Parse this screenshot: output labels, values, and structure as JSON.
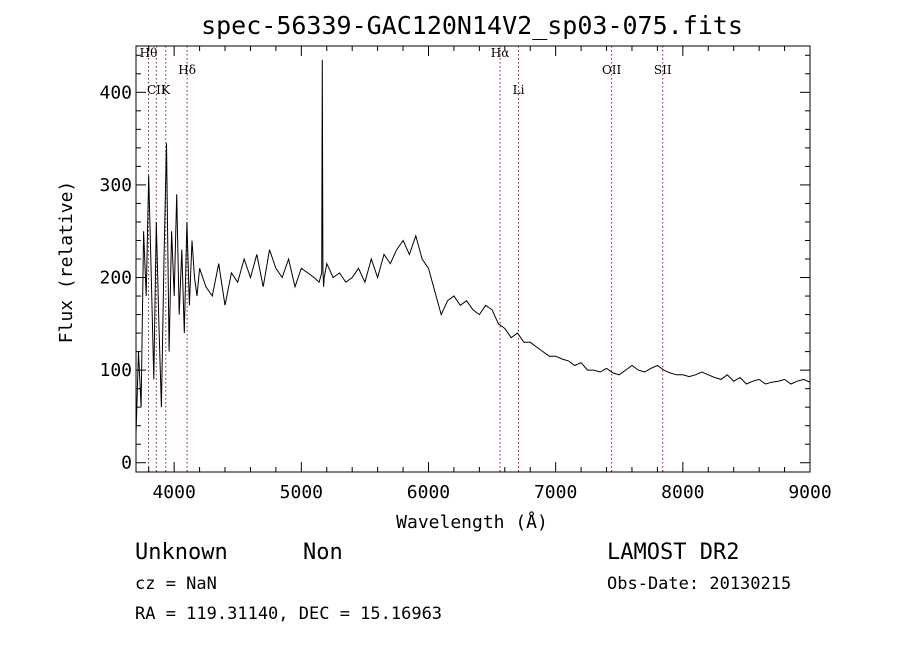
{
  "chart_data": {
    "type": "line",
    "title": "spec-56339-GAC120N14V2_sp03-075.fits",
    "xlabel": "Wavelength (Å)",
    "ylabel": "Flux (relative)",
    "xlim": [
      3700,
      9000
    ],
    "ylim": [
      -10,
      450
    ],
    "grid": false,
    "x_ticks": [
      4000,
      5000,
      6000,
      7000,
      8000,
      9000
    ],
    "y_ticks": [
      0,
      100,
      200,
      300,
      400
    ],
    "line_color": "#000000",
    "marker_color": "#8b1a1a",
    "spectral_lines": [
      {
        "label": "Hθ",
        "x": 3798
      },
      {
        "label": "CII",
        "x": 3860
      },
      {
        "label": "K",
        "x": 3934
      },
      {
        "label": "Hδ",
        "x": 4102
      },
      {
        "label": "Hα",
        "x": 6563
      },
      {
        "label": "Li",
        "x": 6708
      },
      {
        "label": "OII",
        "x": 7440
      },
      {
        "label": "SII",
        "x": 7842
      }
    ],
    "series": [
      {
        "x": [
          3700,
          3720,
          3740,
          3760,
          3780,
          3800,
          3820,
          3840,
          3860,
          3880,
          3900,
          3920,
          3940,
          3960,
          3980,
          4000,
          4020,
          4040,
          4060,
          4080,
          4100,
          4120,
          4140,
          4160,
          4180,
          4200,
          4250,
          4300,
          4350,
          4400,
          4450,
          4500,
          4550,
          4600,
          4650,
          4700,
          4750,
          4800,
          4850,
          4900,
          4950,
          5000,
          5050,
          5100,
          5140,
          5160,
          5165,
          5170,
          5175,
          5180,
          5200,
          5250,
          5300,
          5350,
          5400,
          5450,
          5500,
          5550,
          5600,
          5650,
          5700,
          5750,
          5800,
          5850,
          5900,
          5950,
          6000,
          6050,
          6100,
          6150,
          6200,
          6250,
          6300,
          6350,
          6400,
          6450,
          6500,
          6550,
          6600,
          6650,
          6700,
          6750,
          6800,
          6850,
          6900,
          6950,
          7000,
          7050,
          7100,
          7150,
          7200,
          7250,
          7300,
          7350,
          7400,
          7450,
          7500,
          7550,
          7600,
          7650,
          7700,
          7750,
          7800,
          7850,
          7900,
          7950,
          8000,
          8050,
          8100,
          8150,
          8200,
          8250,
          8300,
          8350,
          8400,
          8450,
          8500,
          8550,
          8600,
          8650,
          8700,
          8750,
          8800,
          8850,
          8900,
          8950,
          9000
        ],
        "y": [
          30,
          120,
          60,
          250,
          180,
          310,
          200,
          90,
          260,
          150,
          60,
          220,
          345,
          120,
          250,
          180,
          290,
          160,
          230,
          140,
          260,
          170,
          240,
          200,
          180,
          210,
          190,
          180,
          215,
          170,
          205,
          195,
          220,
          200,
          225,
          190,
          230,
          210,
          200,
          220,
          190,
          210,
          205,
          200,
          195,
          205,
          435,
          210,
          190,
          200,
          215,
          200,
          205,
          195,
          200,
          210,
          195,
          220,
          200,
          225,
          215,
          230,
          240,
          225,
          245,
          220,
          210,
          185,
          160,
          175,
          180,
          170,
          175,
          165,
          160,
          170,
          165,
          150,
          145,
          135,
          140,
          130,
          130,
          125,
          120,
          115,
          115,
          112,
          110,
          105,
          108,
          100,
          100,
          98,
          102,
          97,
          95,
          100,
          105,
          100,
          98,
          102,
          105,
          100,
          97,
          95,
          95,
          93,
          95,
          98,
          95,
          92,
          90,
          95,
          88,
          92,
          85,
          88,
          90,
          85,
          87,
          88,
          90,
          85,
          88,
          90,
          87
        ]
      }
    ]
  },
  "info": {
    "object_class": "Unknown",
    "subclass": "Non",
    "survey": "LAMOST DR2",
    "cz_line": "cz = NaN",
    "obs_date_line": "Obs-Date: 20130215",
    "coords_line": "RA = 119.31140, DEC =  15.16963"
  }
}
